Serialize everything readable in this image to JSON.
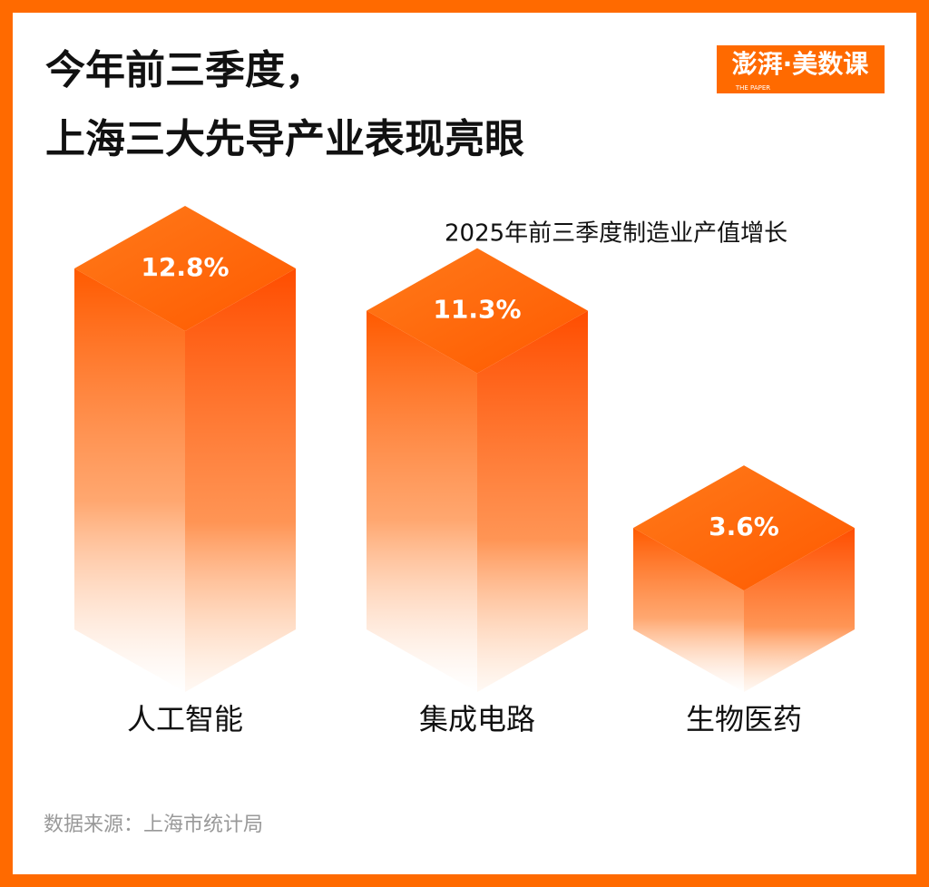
{
  "logo": {
    "text": "澎湃·美数课",
    "subtitle": "THE PAPER"
  },
  "chart_data": {
    "type": "bar3d",
    "title": [
      "今年前三季度，",
      "上海三大先导产业表现亮眼"
    ],
    "subtitle": "2025年前三季度制造业产值增长",
    "categories": [
      "人工智能",
      "集成电路",
      "生物医药"
    ],
    "values": [
      12.8,
      11.3,
      3.6
    ],
    "value_labels": [
      "12.8%",
      "11.3%",
      "3.6%"
    ],
    "color": "#ff5a00",
    "source": "数据来源：上海市统计局"
  }
}
